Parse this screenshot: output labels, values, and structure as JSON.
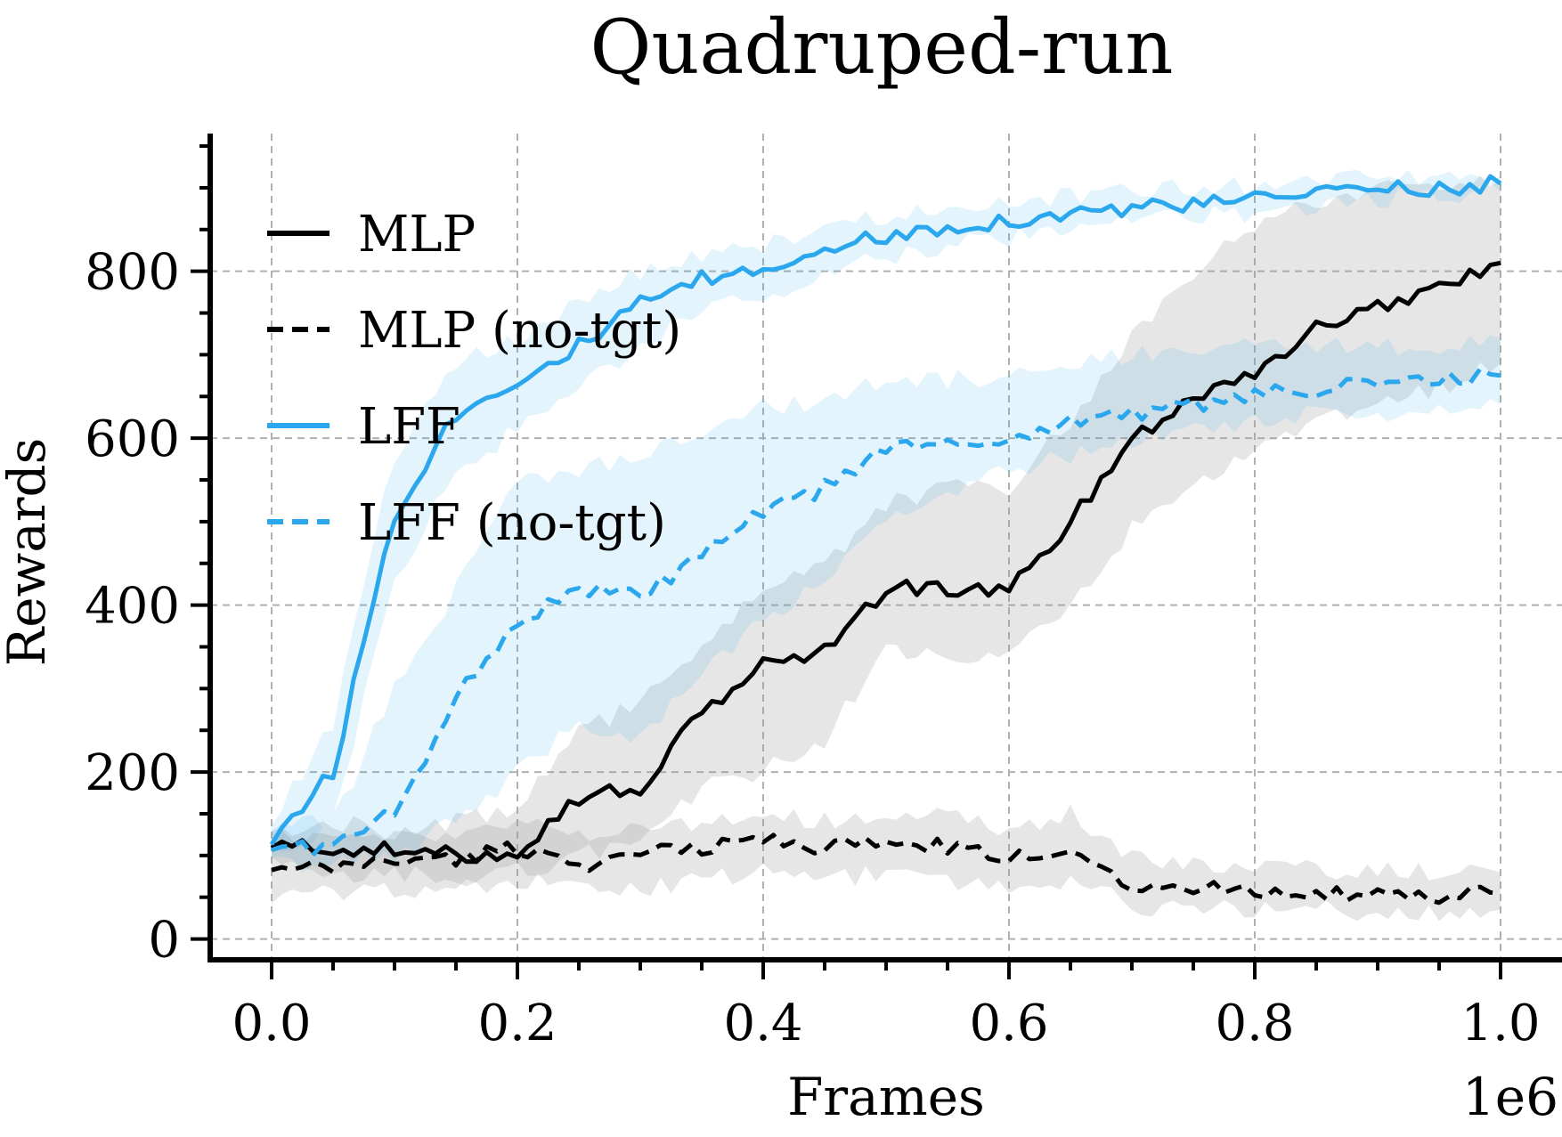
{
  "chart_data": {
    "type": "line",
    "title": "Quadruped-run",
    "xlabel": "Frames",
    "ylabel": "Rewards",
    "x_offset_text": "1e6",
    "xlim": [
      -0.05,
      1.05
    ],
    "ylim": [
      -25,
      965
    ],
    "xticks": [
      0.0,
      0.2,
      0.4,
      0.6,
      0.8,
      1.0
    ],
    "xtick_labels": [
      "0.0",
      "0.2",
      "0.4",
      "0.6",
      "0.8",
      "1.0"
    ],
    "yticks": [
      0,
      200,
      400,
      600,
      800
    ],
    "ytick_labels": [
      "0",
      "200",
      "400",
      "600",
      "800"
    ],
    "grid": true,
    "legend_position": "upper-left",
    "x": [
      0.0,
      0.05,
      0.1,
      0.15,
      0.2,
      0.25,
      0.3,
      0.35,
      0.4,
      0.45,
      0.5,
      0.55,
      0.6,
      0.65,
      0.7,
      0.75,
      0.8,
      0.85,
      0.9,
      0.95,
      1.0
    ],
    "series": [
      {
        "name": "MLP",
        "color": "#000000",
        "dash": "solid",
        "values": [
          110,
          110,
          105,
          100,
          105,
          170,
          180,
          270,
          330,
          345,
          420,
          420,
          415,
          500,
          600,
          650,
          680,
          730,
          760,
          780,
          810
        ],
        "band_lower": [
          90,
          70,
          80,
          70,
          80,
          100,
          120,
          180,
          200,
          240,
          350,
          330,
          340,
          400,
          490,
          540,
          580,
          620,
          640,
          660,
          690
        ],
        "band_upper": [
          130,
          140,
          130,
          140,
          150,
          250,
          280,
          350,
          420,
          450,
          520,
          540,
          540,
          620,
          720,
          800,
          860,
          880,
          900,
          900,
          910
        ]
      },
      {
        "name": "MLP (no-tgt)",
        "color": "#000000",
        "dash": "dashed",
        "values": [
          80,
          85,
          95,
          95,
          110,
          90,
          100,
          110,
          120,
          110,
          115,
          110,
          95,
          110,
          65,
          60,
          60,
          55,
          50,
          50,
          55
        ],
        "band_lower": [
          50,
          55,
          60,
          60,
          70,
          60,
          60,
          70,
          80,
          70,
          80,
          70,
          60,
          70,
          40,
          35,
          35,
          35,
          30,
          30,
          35
        ],
        "band_upper": [
          120,
          120,
          125,
          125,
          140,
          125,
          130,
          140,
          150,
          140,
          150,
          150,
          130,
          150,
          100,
          90,
          85,
          85,
          80,
          80,
          80
        ]
      },
      {
        "name": "LFF",
        "color": "#2ba7ee",
        "dash": "solid",
        "values": [
          120,
          200,
          510,
          630,
          670,
          710,
          760,
          790,
          800,
          830,
          840,
          855,
          860,
          870,
          875,
          880,
          885,
          895,
          900,
          900,
          905
        ],
        "band_lower": [
          100,
          140,
          430,
          560,
          610,
          660,
          710,
          750,
          770,
          800,
          815,
          830,
          840,
          850,
          860,
          865,
          870,
          880,
          885,
          890,
          895
        ],
        "band_upper": [
          140,
          260,
          580,
          690,
          720,
          760,
          800,
          820,
          830,
          855,
          865,
          875,
          880,
          890,
          895,
          900,
          905,
          910,
          915,
          915,
          915
        ]
      },
      {
        "name": "LFF (no-tgt)",
        "color": "#2ba7ee",
        "dash": "dashed",
        "values": [
          110,
          110,
          150,
          290,
          380,
          420,
          410,
          460,
          510,
          540,
          590,
          590,
          600,
          620,
          630,
          640,
          650,
          660,
          665,
          670,
          675
        ],
        "band_lower": [
          90,
          90,
          100,
          140,
          200,
          260,
          240,
          320,
          380,
          430,
          500,
          530,
          560,
          580,
          600,
          610,
          620,
          630,
          630,
          635,
          640
        ],
        "band_upper": [
          130,
          140,
          300,
          420,
          550,
          560,
          580,
          600,
          640,
          640,
          670,
          670,
          670,
          690,
          700,
          700,
          710,
          710,
          710,
          710,
          720
        ]
      }
    ]
  }
}
